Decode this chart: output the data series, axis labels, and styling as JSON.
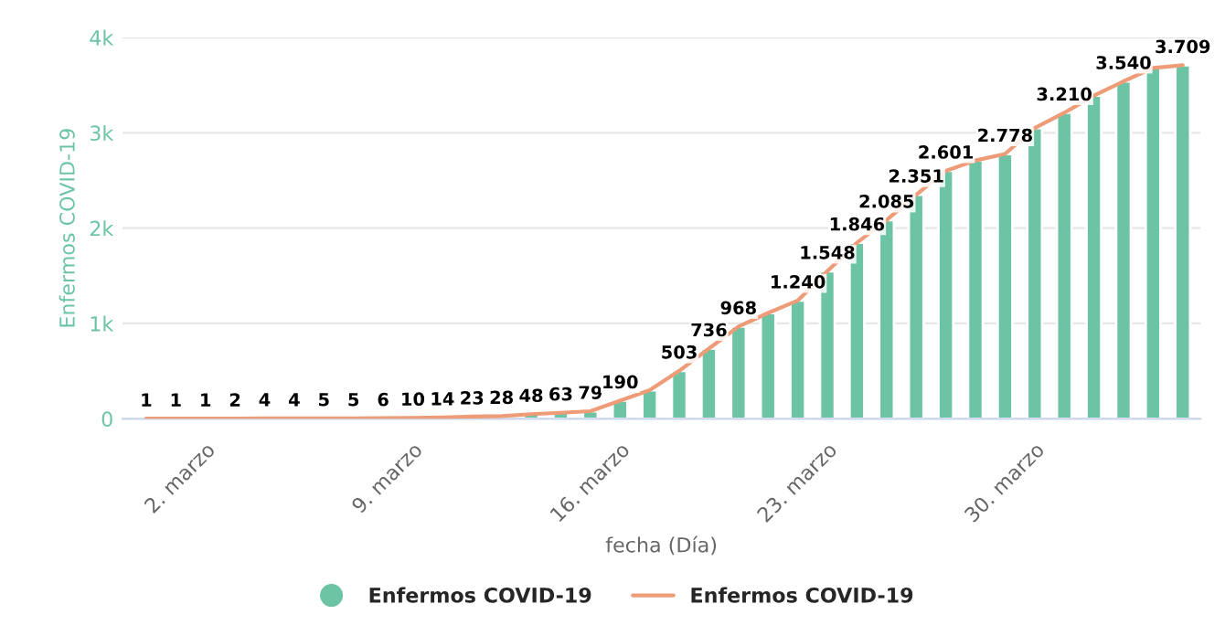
{
  "chart_data": {
    "type": "bar",
    "xlabel": "fecha (Día)",
    "ylabel": "Enfermos COVID-19",
    "categories": [
      null,
      null,
      "2. marzo",
      null,
      null,
      null,
      null,
      null,
      null,
      "9. marzo",
      null,
      null,
      null,
      null,
      null,
      null,
      "16. marzo",
      null,
      null,
      null,
      null,
      null,
      null,
      "23. marzo",
      null,
      null,
      null,
      null,
      null,
      null,
      "30. marzo",
      null,
      null,
      null,
      null,
      null
    ],
    "series": [
      {
        "name": "Enfermos COVID-19",
        "color": "#6cc4a4",
        "values": [
          1,
          1,
          1,
          2,
          4,
          4,
          5,
          5,
          6,
          10,
          14,
          23,
          28,
          48,
          63,
          79,
          190,
          300,
          503,
          736,
          968,
          1110,
          1240,
          1548,
          1846,
          2085,
          2351,
          2601,
          2710,
          2778,
          3050,
          3210,
          3390,
          3540,
          3680,
          3709
        ],
        "value_labels": [
          "1",
          "1",
          "1",
          "2",
          "4",
          "4",
          "5",
          "5",
          "6",
          "10",
          "14",
          "23",
          "28",
          "48",
          "63",
          "79",
          "190",
          null,
          "503",
          "736",
          "968",
          null,
          "1.240",
          "1.548",
          "1.846",
          "2.085",
          "2.351",
          "2.601",
          null,
          "2.778",
          null,
          "3.210",
          null,
          "3.540",
          null,
          "3.709"
        ]
      },
      {
        "name": "Enfermos COVID-19",
        "type": "line",
        "color": "#ee9b78",
        "marker": "none",
        "values": [
          1,
          1,
          1,
          2,
          4,
          4,
          5,
          5,
          6,
          10,
          14,
          23,
          28,
          48,
          63,
          79,
          190,
          300,
          503,
          736,
          968,
          1110,
          1240,
          1548,
          1846,
          2085,
          2351,
          2601,
          2710,
          2778,
          3050,
          3210,
          3390,
          3540,
          3680,
          3709
        ]
      }
    ],
    "ylim": [
      0,
      4000
    ],
    "yticks": [
      0,
      {
        "value": 1000,
        "label": "1k"
      },
      {
        "value": 2000,
        "label": "2k"
      },
      {
        "value": 3000,
        "label": "3k"
      },
      {
        "value": 4000,
        "label": "4k"
      }
    ],
    "grid": "y",
    "legend": "bottom"
  }
}
